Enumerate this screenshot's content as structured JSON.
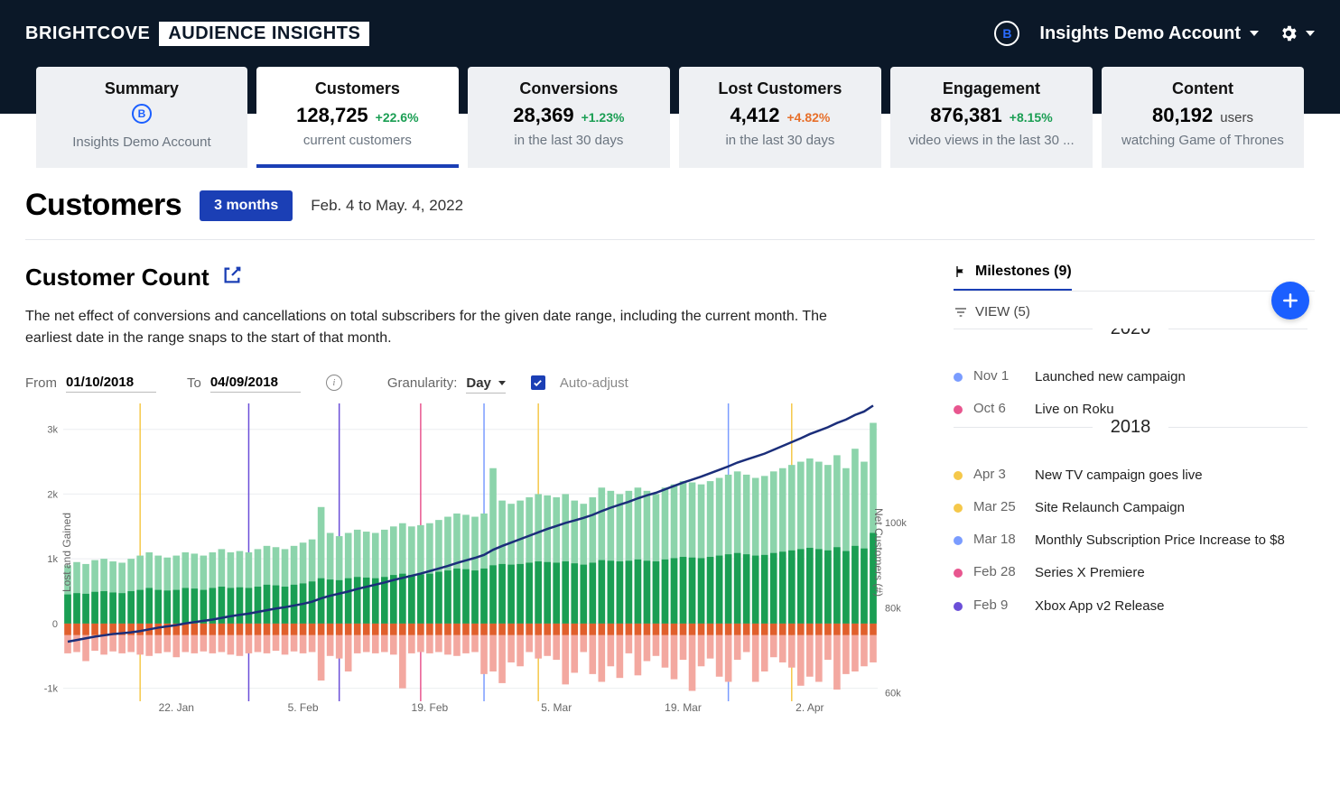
{
  "brand": {
    "left": "BRIGHTCOVE",
    "right": "AUDIENCE INSIGHTS"
  },
  "account": {
    "name": "Insights Demo Account"
  },
  "tabs": {
    "summary": {
      "title": "Summary",
      "sub": "Insights Demo Account"
    },
    "customers": {
      "title": "Customers",
      "value": "128,725",
      "delta": "+22.6%",
      "delta_sign": "pos",
      "sub": "current customers"
    },
    "conversions": {
      "title": "Conversions",
      "value": "28,369",
      "delta": "+1.23%",
      "delta_sign": "pos",
      "sub": "in the last 30 days"
    },
    "lost": {
      "title": "Lost Customers",
      "value": "4,412",
      "delta": "+4.82%",
      "delta_sign": "neg",
      "sub": "in the last 30 days"
    },
    "engagement": {
      "title": "Engagement",
      "value": "876,381",
      "delta": "+8.15%",
      "delta_sign": "pos",
      "sub": "video views in the last 30 ..."
    },
    "content": {
      "title": "Content",
      "value": "80,192",
      "unit": "users",
      "sub": "watching Game of Thrones"
    }
  },
  "page": {
    "title": "Customers",
    "range_chip": "3 months",
    "range_text": "Feb. 4 to May. 4, 2022"
  },
  "section": {
    "title": "Customer Count",
    "desc": "The net effect of conversions and cancellations on total subscribers for the given date range, including the current month. The earliest date in the range snaps to the start of that month."
  },
  "controls": {
    "from_label": "From",
    "from": "01/10/2018",
    "to_label": "To",
    "to": "04/09/2018",
    "gran_label": "Granularity:",
    "gran": "Day",
    "auto": "Auto-adjust"
  },
  "chart": {
    "type": "bar+line",
    "left_axis_label": "Lost and Gained",
    "right_axis_label": "Net Customers (#)",
    "left_ticks": [
      -1000,
      0,
      1000,
      2000,
      3000
    ],
    "left_tick_labels": [
      "-1k",
      "0",
      "1k",
      "2k",
      "3k"
    ],
    "right_ticks": [
      60000,
      80000,
      100000
    ],
    "right_tick_labels": [
      "60k",
      "80k",
      "100k"
    ],
    "x_ticks": [
      12,
      26,
      40,
      54,
      68,
      82
    ],
    "x_tick_labels": [
      "22. Jan",
      "5. Feb",
      "19. Feb",
      "5. Mar",
      "19. Mar",
      "2. Apr"
    ],
    "ylim_left": [
      -1200,
      3400
    ],
    "colors": {
      "bar_trials_light": "#8cd4ab",
      "bar_conv_dark": "#1a9e53",
      "bar_react_orange": "#e05f2c",
      "bar_lost_pink": "#f3a8a0",
      "line_net": "#1b2e7a",
      "grid": "#eceef0",
      "milestone_lines": {
        "yellow": "#f5c84a",
        "purple": "#6b4fd8",
        "pink": "#e8568f",
        "blue": "#7a9cff"
      }
    },
    "milestone_vlines": [
      {
        "x": 8,
        "color": "yellow"
      },
      {
        "x": 20,
        "color": "purple"
      },
      {
        "x": 30,
        "color": "purple"
      },
      {
        "x": 39,
        "color": "pink"
      },
      {
        "x": 46,
        "color": "blue"
      },
      {
        "x": 52,
        "color": "yellow"
      },
      {
        "x": 73,
        "color": "blue"
      },
      {
        "x": 80,
        "color": "yellow"
      }
    ],
    "bars": {
      "count": 90,
      "light": [
        900,
        950,
        920,
        980,
        1000,
        960,
        940,
        1000,
        1050,
        1100,
        1050,
        1020,
        1050,
        1100,
        1080,
        1050,
        1100,
        1150,
        1100,
        1120,
        1100,
        1150,
        1200,
        1180,
        1150,
        1200,
        1250,
        1300,
        1800,
        1400,
        1350,
        1400,
        1450,
        1420,
        1400,
        1450,
        1500,
        1550,
        1500,
        1520,
        1550,
        1600,
        1650,
        1700,
        1680,
        1650,
        1700,
        2400,
        1900,
        1850,
        1900,
        1950,
        2000,
        1980,
        1950,
        2000,
        1900,
        1850,
        1950,
        2100,
        2050,
        2000,
        2050,
        2100,
        2050,
        2000,
        2100,
        2150,
        2200,
        2180,
        2150,
        2200,
        2250,
        2300,
        2350,
        2300,
        2250,
        2280,
        2350,
        2400,
        2450,
        2500,
        2550,
        2500,
        2450,
        2600,
        2400,
        2700,
        2500,
        3100
      ],
      "dark": [
        450,
        470,
        460,
        490,
        500,
        480,
        470,
        500,
        520,
        550,
        520,
        510,
        520,
        550,
        540,
        520,
        550,
        570,
        550,
        560,
        550,
        570,
        600,
        590,
        570,
        600,
        620,
        650,
        700,
        680,
        670,
        700,
        720,
        710,
        700,
        720,
        750,
        770,
        750,
        760,
        770,
        800,
        820,
        850,
        840,
        820,
        850,
        900,
        920,
        910,
        920,
        940,
        960,
        950,
        940,
        960,
        930,
        910,
        940,
        980,
        970,
        960,
        970,
        990,
        970,
        960,
        990,
        1010,
        1030,
        1020,
        1010,
        1030,
        1050,
        1070,
        1090,
        1070,
        1050,
        1060,
        1090,
        1110,
        1130,
        1150,
        1170,
        1150,
        1130,
        1180,
        1120,
        1200,
        1160,
        1400
      ],
      "orange": [
        180,
        180,
        180,
        180,
        180,
        180,
        180,
        180,
        180,
        180,
        180,
        180,
        180,
        180,
        180,
        180,
        180,
        180,
        180,
        180,
        180,
        180,
        180,
        180,
        180,
        180,
        180,
        180,
        180,
        180,
        180,
        180,
        180,
        180,
        180,
        180,
        180,
        180,
        180,
        180,
        180,
        180,
        180,
        180,
        180,
        180,
        180,
        180,
        180,
        180,
        180,
        180,
        180,
        180,
        180,
        180,
        180,
        180,
        180,
        180,
        180,
        180,
        180,
        180,
        180,
        180,
        180,
        180,
        180,
        180,
        180,
        180,
        180,
        180,
        180,
        180,
        180,
        180,
        180,
        180,
        180,
        180,
        180,
        180,
        180,
        180,
        180,
        180,
        180,
        180
      ],
      "pink": [
        280,
        260,
        400,
        240,
        300,
        250,
        280,
        260,
        300,
        320,
        280,
        260,
        340,
        260,
        280,
        250,
        280,
        260,
        300,
        320,
        280,
        260,
        280,
        240,
        300,
        250,
        280,
        260,
        700,
        320,
        360,
        560,
        280,
        260,
        280,
        260,
        300,
        820,
        280,
        260,
        280,
        260,
        300,
        320,
        280,
        260,
        600,
        560,
        740,
        420,
        480,
        260,
        360,
        320,
        380,
        760,
        580,
        260,
        600,
        720,
        480,
        660,
        280,
        620,
        400,
        320,
        500,
        680,
        380,
        860,
        480,
        360,
        640,
        720,
        380,
        260,
        720,
        560,
        340,
        420,
        500,
        780,
        640,
        720,
        380,
        840,
        600,
        560,
        480,
        420
      ]
    },
    "line_net": [
      72000,
      72400,
      72800,
      73200,
      73500,
      73800,
      74000,
      74200,
      74500,
      74900,
      75300,
      75600,
      75900,
      76300,
      76600,
      76900,
      77200,
      77600,
      78000,
      78300,
      78600,
      79000,
      79400,
      79800,
      80100,
      80500,
      80900,
      81400,
      82200,
      82800,
      83300,
      83800,
      84400,
      84900,
      85400,
      85900,
      86500,
      87000,
      87500,
      88000,
      88600,
      89200,
      89800,
      90500,
      91100,
      91700,
      92400,
      93600,
      94500,
      95300,
      96100,
      96900,
      97700,
      98500,
      99200,
      99900,
      100500,
      101100,
      101800,
      102700,
      103500,
      104200,
      104900,
      105700,
      106400,
      107000,
      107800,
      108600,
      109400,
      110100,
      110800,
      111600,
      112400,
      113200,
      114100,
      114800,
      115500,
      116200,
      117100,
      118000,
      118900,
      119800,
      120800,
      121600,
      122400,
      123400,
      124200,
      125300,
      126100,
      127500
    ],
    "net_range": [
      58000,
      128000
    ]
  },
  "milestones": {
    "title": "Milestones (9)",
    "view": "VIEW (5)",
    "groups": [
      {
        "year": "2020",
        "items": [
          {
            "dot": "#7a9cff",
            "date": "Nov 1",
            "text": "Launched new campaign"
          },
          {
            "dot": "#e8568f",
            "date": "Oct 6",
            "text": "Live on Roku"
          }
        ]
      },
      {
        "year": "2018",
        "items": [
          {
            "dot": "#f5c84a",
            "date": "Apr 3",
            "text": "New TV campaign goes live"
          },
          {
            "dot": "#f5c84a",
            "date": "Mar 25",
            "text": "Site Relaunch Campaign"
          },
          {
            "dot": "#7a9cff",
            "date": "Mar 18",
            "text": "Monthly Subscription Price Increase to $8"
          },
          {
            "dot": "#e8568f",
            "date": "Feb 28",
            "text": "Series X Premiere"
          },
          {
            "dot": "#6b4fd8",
            "date": "Feb 9",
            "text": "Xbox App v2 Release"
          }
        ]
      }
    ]
  }
}
